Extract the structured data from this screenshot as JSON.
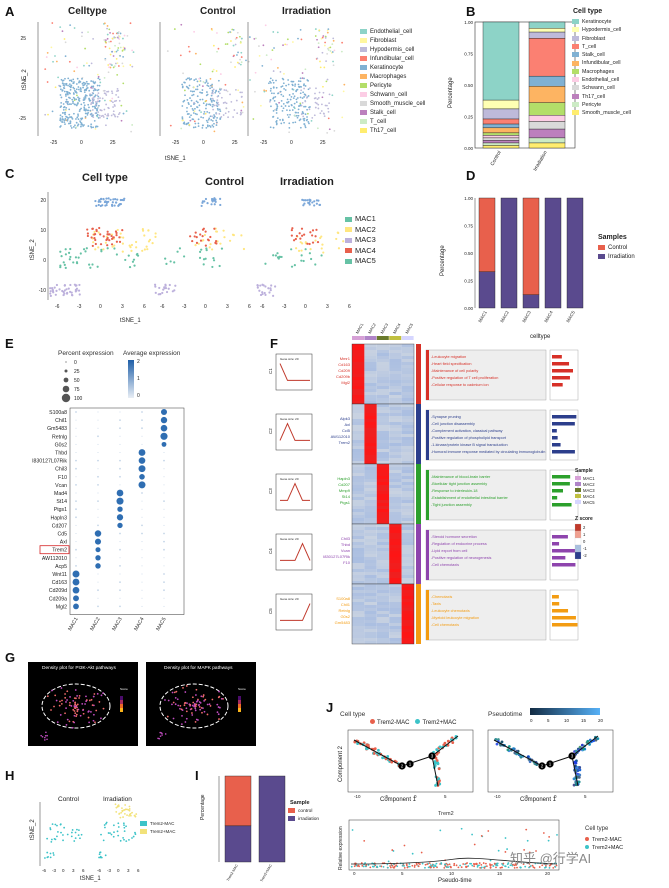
{
  "panels": {
    "a": "A",
    "b": "B",
    "c": "C",
    "d": "D",
    "e": "E",
    "f": "F",
    "g": "G",
    "h": "H",
    "i": "I",
    "j": "J"
  },
  "A": {
    "titles": [
      "Celltype",
      "Control",
      "Irradiation"
    ],
    "xlabel": "tSNE_1",
    "ylabel": "tSNE_2",
    "xticks": [
      "-25",
      "0",
      "25"
    ],
    "yticks": [
      "25",
      "0",
      "-25"
    ],
    "legend": [
      {
        "label": "Endothelial_cell",
        "color": "#8dd3c7"
      },
      {
        "label": "Fibroblast",
        "color": "#fff7a0"
      },
      {
        "label": "Hypodermis_cell",
        "color": "#bebada"
      },
      {
        "label": "Infundibular_cell",
        "color": "#fb8072"
      },
      {
        "label": "Keratinocyte",
        "color": "#80b1d3"
      },
      {
        "label": "Macrophages",
        "color": "#fdb462"
      },
      {
        "label": "Pericyte",
        "color": "#b3de69"
      },
      {
        "label": "Schwann_cell",
        "color": "#fccde5"
      },
      {
        "label": "Smooth_muscle_cell",
        "color": "#d9d9d9"
      },
      {
        "label": "Stalk_cell",
        "color": "#bc80bd"
      },
      {
        "label": "T_cell",
        "color": "#ccebc5"
      },
      {
        "label": "Th17_cell",
        "color": "#ffed6f"
      }
    ]
  },
  "B": {
    "legend_title": "Cell type",
    "ylabel": "Percentage",
    "yticks": [
      "1.00",
      "0.75",
      "0.50",
      "0.25",
      "0.00"
    ],
    "categories": [
      "Control",
      "Irradiation"
    ],
    "legend": [
      {
        "label": "Keratinocyte",
        "color": "#8dd3c7"
      },
      {
        "label": "Hypodermis_cell",
        "color": "#ffffb3"
      },
      {
        "label": "Fibroblast",
        "color": "#bebada"
      },
      {
        "label": "T_cell",
        "color": "#fb8072"
      },
      {
        "label": "Stalk_cell",
        "color": "#80b1d3"
      },
      {
        "label": "Infundibular_cell",
        "color": "#fdb462"
      },
      {
        "label": "Macrophages",
        "color": "#b3de69"
      },
      {
        "label": "Endothelial_cell",
        "color": "#fccde5"
      },
      {
        "label": "Schwann_cell",
        "color": "#d9d9d9"
      },
      {
        "label": "Th17_cell",
        "color": "#bc80bd"
      },
      {
        "label": "Pericyte",
        "color": "#ccebc5"
      },
      {
        "label": "Smooth_muscle_cell",
        "color": "#ffed6f"
      }
    ]
  },
  "C": {
    "titles": [
      "Cell type",
      "Control",
      "Irradiation"
    ],
    "xlabel": "tSNE_1",
    "ylabel": "tSNE_2",
    "yticks": [
      "20",
      "10",
      "0",
      "-10"
    ],
    "xticks": [
      "-6",
      "-3",
      "0",
      "3",
      "6"
    ],
    "legend": [
      {
        "label": "MAC1",
        "color": "#66c2a5"
      },
      {
        "label": "MAC2",
        "color": "#ffe680"
      },
      {
        "label": "MAC3",
        "color": "#bcb0dc"
      },
      {
        "label": "MAC4",
        "color": "#e8604c"
      },
      {
        "label": "MAC5",
        "color": "#66c2a5"
      }
    ]
  },
  "D": {
    "ylabel": "Percentage",
    "xlabel": "celltype",
    "yticks": [
      "1.00",
      "0.75",
      "0.50",
      "0.25",
      "0.00"
    ],
    "legend_title": "Samples",
    "legend": [
      {
        "label": "Control",
        "color": "#e8604c"
      },
      {
        "label": "Irradiation",
        "color": "#5a4a8e"
      }
    ]
  },
  "E": {
    "pct_title": "Percent expression",
    "avg_title": "Average expression",
    "pct_values": [
      "0",
      "25",
      "50",
      "75",
      "100"
    ],
    "avg_ticks": [
      "2",
      "1",
      "0"
    ],
    "genes": [
      "S100a8",
      "Chil1",
      "Gm5483",
      "Retnlg",
      "G0s2",
      "Thbd",
      "I830127L07Rik",
      "Chil3",
      "F10",
      "Vcan",
      "Mad4",
      "St14",
      "Ptgs1",
      "Hapln3",
      "Cd207",
      "Cd5",
      "Axl",
      "Trem2",
      "AW112010",
      "Acp5",
      "Wnt11",
      "Cd163",
      "Cd209d",
      "Cd209a",
      "Mgl2"
    ],
    "xcats": [
      "MAC1",
      "MAC2",
      "MAC3",
      "MAC4",
      "MAC5"
    ]
  },
  "F": {
    "cols": [
      "MAC1",
      "MAC2",
      "MAC3",
      "MAC4",
      "MAC5"
    ],
    "clusters": [
      "C1",
      "C2",
      "C3",
      "C4",
      "C5"
    ],
    "gene_labels": [
      [
        "Mmr1",
        "Cd163",
        "Cd209",
        "Cd209b",
        "Mgl2"
      ],
      [
        "Alpk3",
        "Axl",
        "Ccl5",
        "AW112010",
        "Trem2"
      ],
      [
        "Hapln3",
        "Cd207",
        "Mmp9",
        "St14",
        "Ptgs1"
      ],
      [
        "Chil3",
        "Thbd",
        "Vcan",
        "I830127L07Rik",
        "F10"
      ],
      [
        "S100a8",
        "Chil1",
        "Retnlg",
        "G0s2",
        "Gm5483"
      ]
    ],
    "terms": [
      [
        "-Leukocyte migration",
        "-Heart field specification",
        "-Maintenance of cell polarity",
        "-Positive regulation of T cell proliferation",
        "-Cellular response to cadmium ion"
      ],
      [
        "-Synapse pruning",
        "-Cell junction disassembly",
        "-Complement activation, classical pathway",
        "-Positive regulation of phospholipid transport",
        "-1-kinase/protein kinase B signal transduction",
        "-Humoral immune response mediated by circulating immunoglobulin"
      ],
      [
        "-Maintenance of blood-brain barrier",
        "-Bicellular tight junction assembly",
        "-Response to interleukin-18",
        "-Establishment of endothelial intestinal barrier",
        "-Tight junction assembly"
      ],
      [
        "-Steroid hormone secretion",
        "-Regulation of endocrine process",
        "-Lipid export from cell",
        "-Positive regulation of neurogenesis",
        "-Cell chemotaxis"
      ],
      [
        "-Chemotaxis",
        "-Taxis",
        "-Leukocyte chemotaxis",
        "-Myeloid leukocyte migration",
        "-Cell chemotaxis"
      ]
    ],
    "sample_title": "Sample",
    "zscore_title": "Z score",
    "zticks": [
      "2",
      "1",
      "0",
      "-1",
      "-2"
    ],
    "gene_count_label": "Gene size: 20"
  },
  "G": {
    "title1": "Density plot for PI3K-Akt pathways",
    "title2": "Density plot for MAPK pathways",
    "score_label": "Score"
  },
  "H": {
    "titles": [
      "Control",
      "Irradiation"
    ],
    "xlabel": "tSNE_1",
    "ylabel": "tSNE_2",
    "xticks": [
      "-6",
      "-3",
      "0",
      "3",
      "6",
      "-6",
      "-3",
      "0",
      "3",
      "6"
    ],
    "legend": [
      {
        "label": "Trem2-MAC",
        "color": "#3cc3c8"
      },
      {
        "label": "Trem2+MAC",
        "color": "#f2e27a"
      }
    ]
  },
  "I": {
    "ylabel": "Percentage",
    "categories": [
      "Trem2-MAC",
      "Trem2+MAC"
    ],
    "legend_title": "Sample",
    "legend": [
      {
        "label": "control",
        "color": "#e8604c"
      },
      {
        "label": "irradiation",
        "color": "#5a4a8e"
      }
    ]
  },
  "J": {
    "celltype_label": "Cell type",
    "legend": [
      {
        "label": "Trem2-MAC",
        "color": "#e8604c"
      },
      {
        "label": "Trem2+MAC",
        "color": "#3cc3c8"
      }
    ],
    "pseudotime_label": "Pseudotime",
    "pt_ticks": [
      "0",
      "5",
      "10",
      "15",
      "20"
    ],
    "xlabel": "Component 1",
    "ylabel": "Component 2",
    "gene": "Trem2",
    "bottom_xlabel": "Pseudo-time",
    "bottom_ylabel": "Relative expression",
    "node_labels": [
      "1",
      "2",
      "3"
    ],
    "watermark": "知乎 @行学AI"
  }
}
